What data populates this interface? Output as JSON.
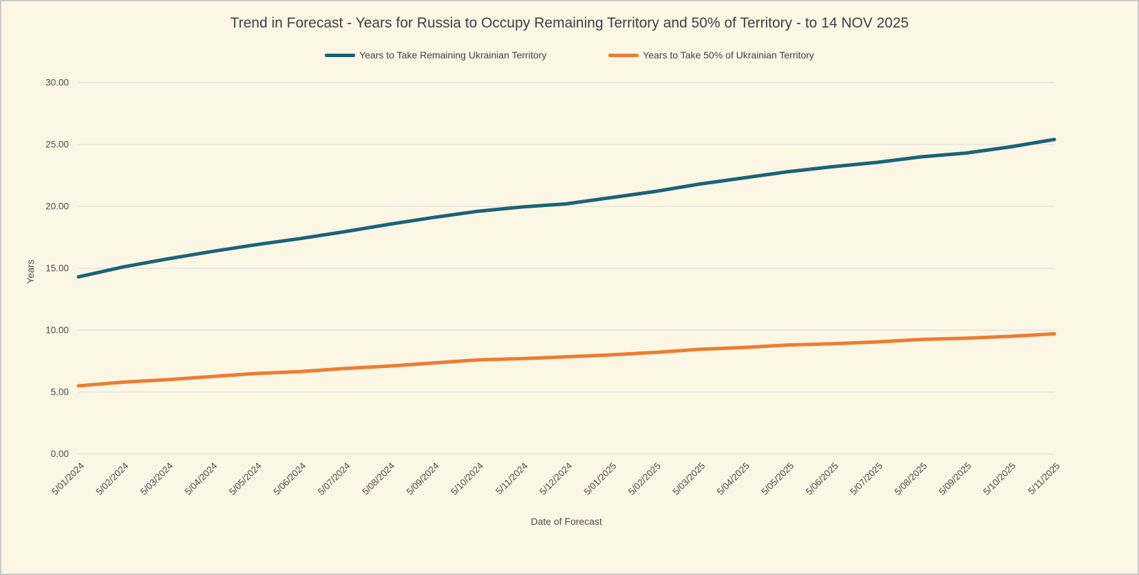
{
  "chart_data": {
    "type": "line",
    "title": "Trend in Forecast - Years for Russia to Occupy Remaining Territory and 50% of Territory - to 14 NOV 2025",
    "xlabel": "Date of Forecast",
    "ylabel": "Years",
    "ylim": [
      0,
      30
    ],
    "yticks": [
      0,
      5,
      10,
      15,
      20,
      25,
      30
    ],
    "grid": true,
    "legend_position": "top",
    "colors": {
      "background": "#fcf6e5",
      "gridline": "#d9d9d9"
    },
    "categories": [
      "5/01/2024",
      "5/02/2024",
      "5/03/2024",
      "5/04/2024",
      "5/05/2024",
      "5/06/2024",
      "5/07/2024",
      "5/08/2024",
      "5/09/2024",
      "5/10/2024",
      "5/11/2024",
      "5/12/2024",
      "5/01/2025",
      "5/02/2025",
      "5/03/2025",
      "5/04/2025",
      "5/05/2025",
      "5/06/2025",
      "5/07/2025",
      "5/08/2025",
      "5/09/2025",
      "5/10/2025",
      "5/11/2025"
    ],
    "series": [
      {
        "name": "Years to Take Remaining Ukrainian Territory",
        "color": "#1b6378",
        "values": [
          14.3,
          15.1,
          15.75,
          16.35,
          16.9,
          17.4,
          17.95,
          18.55,
          19.1,
          19.6,
          19.95,
          20.2,
          20.7,
          21.2,
          21.8,
          22.3,
          22.8,
          23.2,
          23.55,
          24.0,
          24.3,
          24.8,
          25.4
        ]
      },
      {
        "name": "Years to Take  50% of Ukrainian Territory",
        "color": "#ed7d31",
        "values": [
          5.5,
          5.8,
          6.0,
          6.25,
          6.5,
          6.65,
          6.9,
          7.1,
          7.35,
          7.6,
          7.7,
          7.85,
          8.0,
          8.2,
          8.45,
          8.6,
          8.8,
          8.9,
          9.05,
          9.25,
          9.35,
          9.5,
          9.7
        ]
      }
    ]
  }
}
